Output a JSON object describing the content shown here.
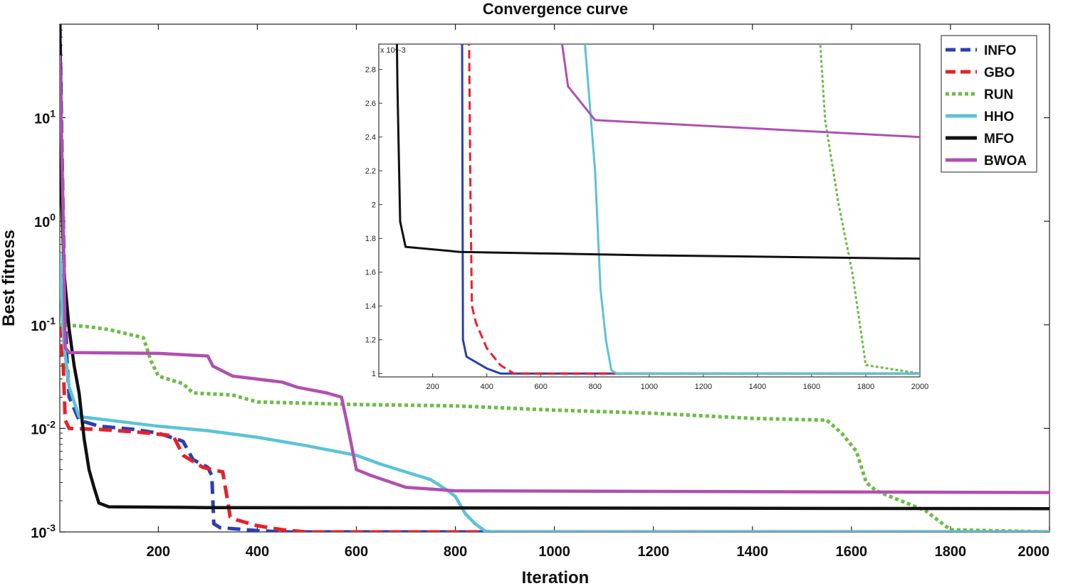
{
  "chart_data": {
    "type": "line",
    "title": "Convergence curve",
    "xlabel": "Iteration",
    "ylabel": "Best fitness",
    "yscale": "log",
    "xlim": [
      1,
      2000
    ],
    "ylim": [
      0.001,
      80
    ],
    "xticks": [
      200,
      400,
      600,
      800,
      1000,
      1200,
      1400,
      1600,
      1800,
      2000
    ],
    "yticks": [
      {
        "value": 10,
        "base": "10",
        "exp": "1"
      },
      {
        "value": 1,
        "base": "10",
        "exp": "0"
      },
      {
        "value": 0.1,
        "base": "10",
        "exp": "-1"
      },
      {
        "value": 0.01,
        "base": "10",
        "exp": "-2"
      },
      {
        "value": 0.001,
        "base": "10",
        "exp": "-3"
      }
    ],
    "legend_position": "top-right",
    "series": [
      {
        "name": "INFO",
        "color": "#2b3faf",
        "dash": "dashed",
        "points": [
          [
            1,
            80
          ],
          [
            5,
            6
          ],
          [
            10,
            0.3
          ],
          [
            15,
            0.05
          ],
          [
            20,
            0.02
          ],
          [
            40,
            0.012
          ],
          [
            80,
            0.0105
          ],
          [
            150,
            0.0098
          ],
          [
            200,
            0.009
          ],
          [
            250,
            0.0075
          ],
          [
            270,
            0.005
          ],
          [
            300,
            0.0042
          ],
          [
            308,
            0.0035
          ],
          [
            312,
            0.0012
          ],
          [
            325,
            0.0011
          ],
          [
            400,
            0.00103
          ],
          [
            450,
            0.001
          ],
          [
            2000,
            0.001
          ]
        ]
      },
      {
        "name": "GBO",
        "color": "#e8202a",
        "dash": "dashed",
        "points": [
          [
            1,
            0.1
          ],
          [
            5,
            0.05
          ],
          [
            8,
            0.04
          ],
          [
            12,
            0.012
          ],
          [
            20,
            0.01
          ],
          [
            80,
            0.0098
          ],
          [
            160,
            0.0092
          ],
          [
            230,
            0.0085
          ],
          [
            250,
            0.0055
          ],
          [
            290,
            0.0042
          ],
          [
            330,
            0.0038
          ],
          [
            340,
            0.002
          ],
          [
            345,
            0.0014
          ],
          [
            360,
            0.0013
          ],
          [
            400,
            0.00115
          ],
          [
            450,
            0.00105
          ],
          [
            500,
            0.001
          ],
          [
            2000,
            0.001
          ]
        ]
      },
      {
        "name": "RUN",
        "color": "#6cbd45",
        "dash": "dotted",
        "points": [
          [
            1,
            0.1
          ],
          [
            50,
            0.097
          ],
          [
            100,
            0.09
          ],
          [
            170,
            0.075
          ],
          [
            185,
            0.045
          ],
          [
            200,
            0.032
          ],
          [
            250,
            0.027
          ],
          [
            270,
            0.022
          ],
          [
            350,
            0.021
          ],
          [
            400,
            0.018
          ],
          [
            600,
            0.017
          ],
          [
            800,
            0.0165
          ],
          [
            1000,
            0.015
          ],
          [
            1200,
            0.014
          ],
          [
            1400,
            0.0125
          ],
          [
            1550,
            0.012
          ],
          [
            1580,
            0.009
          ],
          [
            1610,
            0.006
          ],
          [
            1630,
            0.003
          ],
          [
            1650,
            0.0025
          ],
          [
            1700,
            0.002
          ],
          [
            1750,
            0.0016
          ],
          [
            1800,
            0.00105
          ],
          [
            2000,
            0.001
          ]
        ]
      },
      {
        "name": "HHO",
        "color": "#5bc3d6",
        "dash": "solid",
        "points": [
          [
            1,
            0.5
          ],
          [
            5,
            0.15
          ],
          [
            10,
            0.06
          ],
          [
            20,
            0.025
          ],
          [
            40,
            0.013
          ],
          [
            100,
            0.012
          ],
          [
            200,
            0.0105
          ],
          [
            300,
            0.0095
          ],
          [
            400,
            0.0082
          ],
          [
            500,
            0.0068
          ],
          [
            600,
            0.0055
          ],
          [
            650,
            0.0045
          ],
          [
            700,
            0.0038
          ],
          [
            750,
            0.0032
          ],
          [
            780,
            0.0026
          ],
          [
            800,
            0.0022
          ],
          [
            820,
            0.0015
          ],
          [
            840,
            0.0012
          ],
          [
            860,
            0.00102
          ],
          [
            880,
            0.001
          ],
          [
            2000,
            0.001
          ]
        ]
      },
      {
        "name": "MFO",
        "color": "#111111",
        "dash": "solid",
        "points": [
          [
            1,
            80
          ],
          [
            3,
            20
          ],
          [
            5,
            1.5
          ],
          [
            10,
            0.3
          ],
          [
            20,
            0.09
          ],
          [
            30,
            0.04
          ],
          [
            40,
            0.022
          ],
          [
            50,
            0.008
          ],
          [
            60,
            0.004
          ],
          [
            70,
            0.0027
          ],
          [
            80,
            0.0019
          ],
          [
            100,
            0.00175
          ],
          [
            300,
            0.00172
          ],
          [
            1000,
            0.0017
          ],
          [
            2000,
            0.00168
          ]
        ]
      },
      {
        "name": "BWOA",
        "color": "#b050b0",
        "dash": "solid",
        "points": [
          [
            1,
            40
          ],
          [
            5,
            5
          ],
          [
            8,
            1
          ],
          [
            12,
            0.06
          ],
          [
            20,
            0.054
          ],
          [
            200,
            0.053
          ],
          [
            300,
            0.05
          ],
          [
            310,
            0.04
          ],
          [
            350,
            0.032
          ],
          [
            450,
            0.028
          ],
          [
            480,
            0.025
          ],
          [
            540,
            0.022
          ],
          [
            570,
            0.02
          ],
          [
            580,
            0.012
          ],
          [
            600,
            0.004
          ],
          [
            630,
            0.0035
          ],
          [
            700,
            0.0027
          ],
          [
            800,
            0.0025
          ],
          [
            2000,
            0.0024
          ]
        ]
      }
    ],
    "inset": {
      "exponent_label": "x 10^-3",
      "xlim": [
        1,
        2000
      ],
      "ylim": [
        0.00098,
        0.00295
      ],
      "xticks": [
        200,
        400,
        600,
        800,
        1000,
        1200,
        1400,
        1600,
        1800,
        2000
      ],
      "yticks": [
        "1",
        "1.2",
        "1.4",
        "1.6",
        "1.8",
        "2",
        "2.2",
        "2.4",
        "2.6",
        "2.8"
      ],
      "ytick_values": [
        1.0,
        1.2,
        1.4,
        1.6,
        1.8,
        2.0,
        2.2,
        2.4,
        2.6,
        2.8
      ]
    }
  }
}
